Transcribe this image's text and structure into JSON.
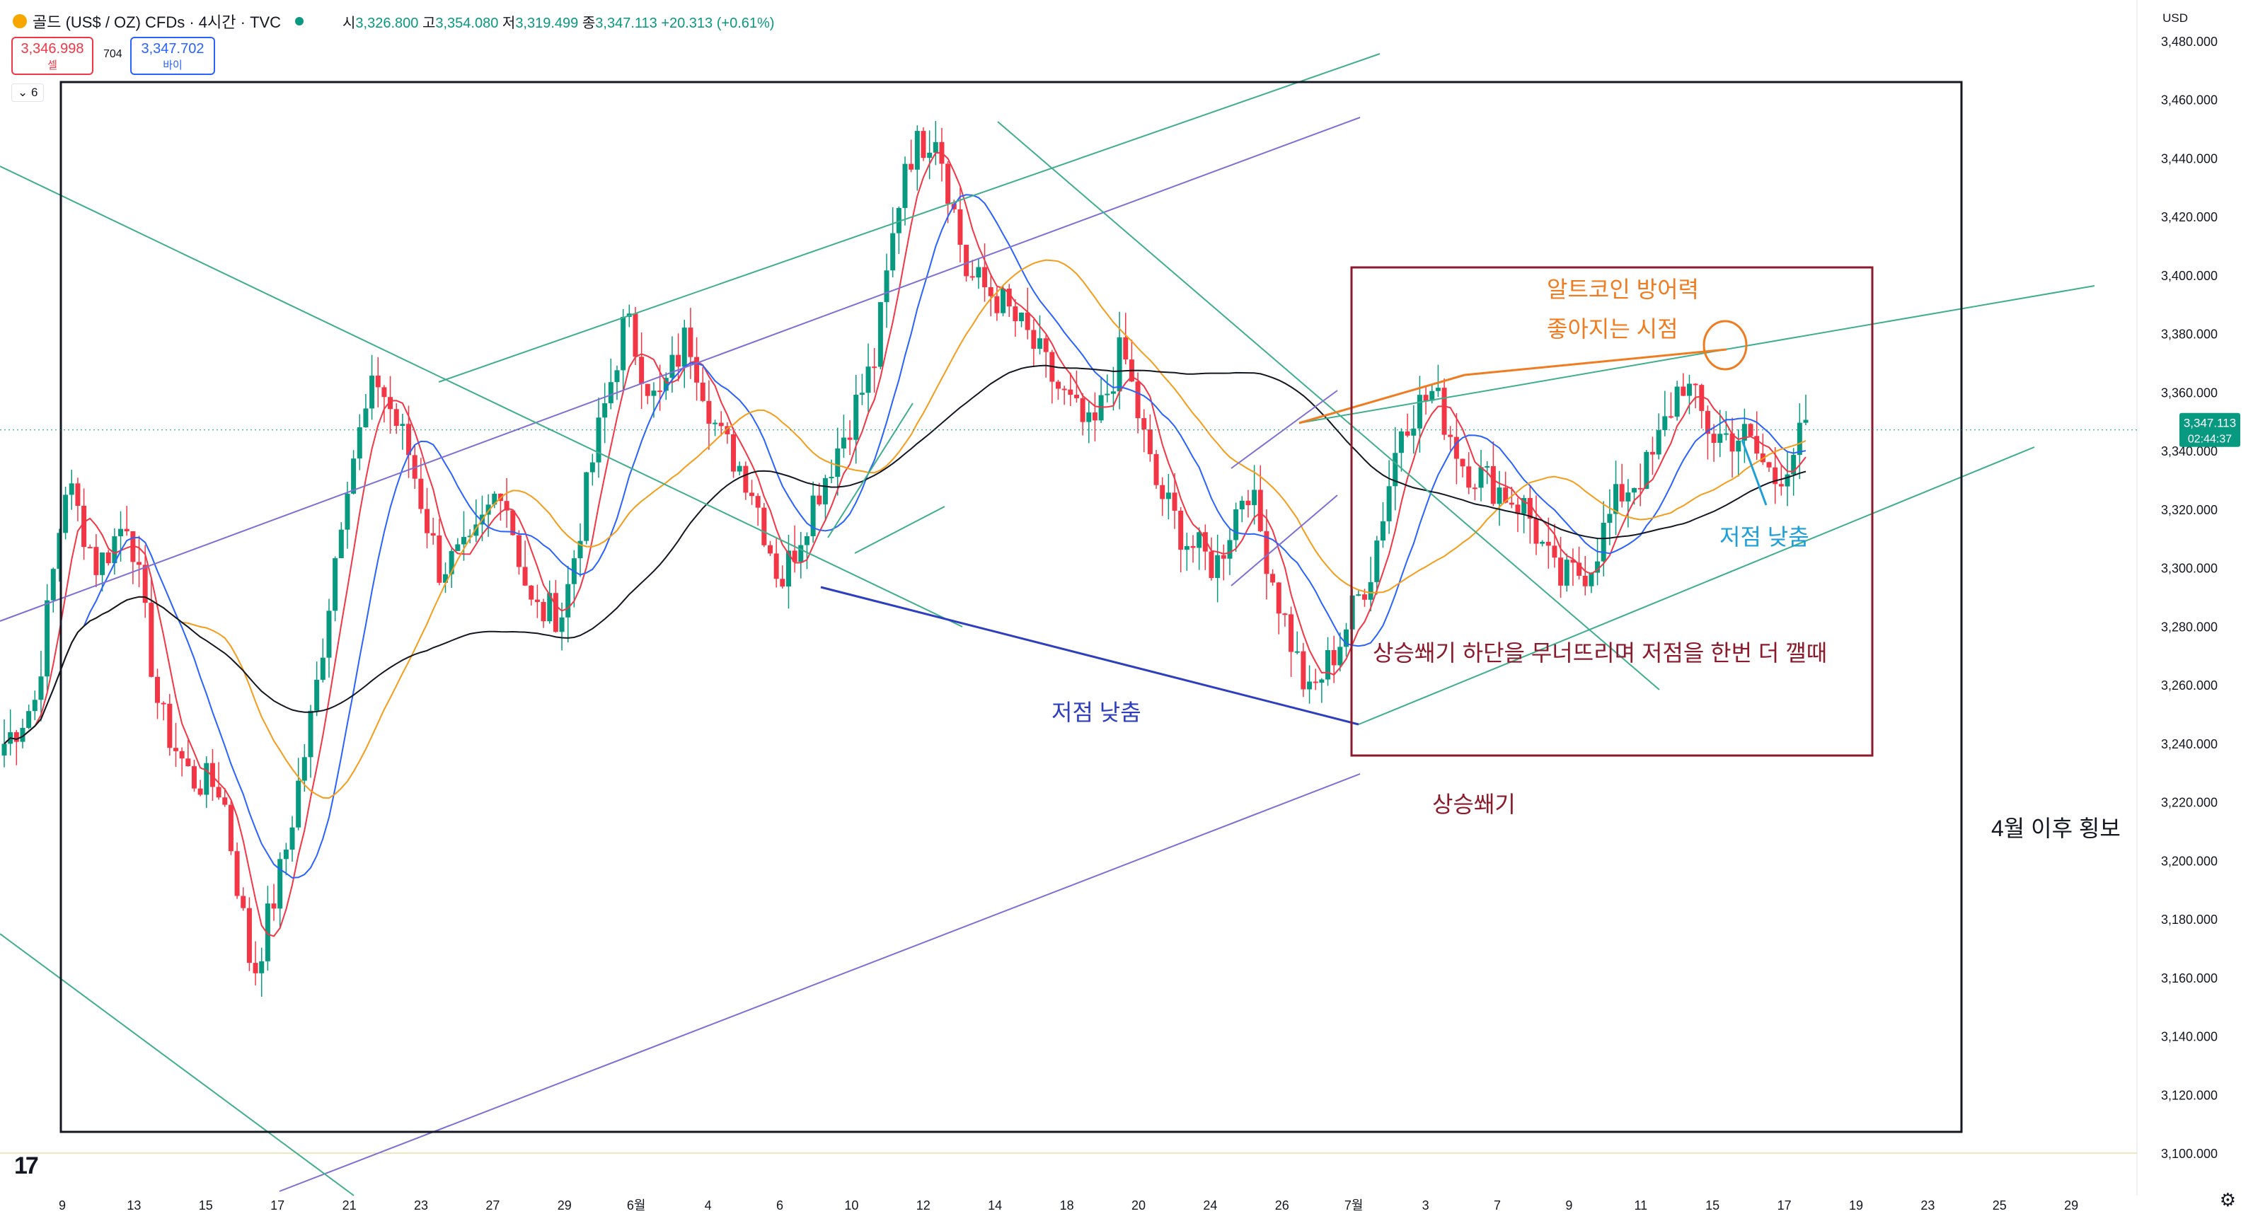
{
  "header": {
    "symbol_title": "골드 (US$ / OZ) CFDs · 4시간 · TVC",
    "ohlc": {
      "open_label": "시",
      "open": "3,326.800",
      "high_label": "고",
      "high": "3,354.080",
      "low_label": "저",
      "low": "3,319.499",
      "close_label": "종",
      "close": "3,347.113",
      "change": "+20.313 (+0.61%)"
    },
    "sell": {
      "price": "3,346.998",
      "label": "셀"
    },
    "buy": {
      "price": "3,347.702",
      "label": "바이"
    },
    "spread": "704",
    "interval_badge": "6",
    "currency": "USD"
  },
  "colors": {
    "up": "#089981",
    "down": "#f23645",
    "ma_red": "#f23645",
    "ma_blue": "#2962ff",
    "ma_orange": "#f59c1a",
    "ma_black": "#131722",
    "channel_green": "#3fae8c",
    "channel_purple": "#7e6fd6",
    "annot_maroon": "#8b1a2b",
    "annot_orange": "#f07c21",
    "annot_blue": "#2d3fbf",
    "annot_cyan": "#1e9fd8"
  },
  "chart_data": {
    "type": "candlestick",
    "title": "골드 (US$ / OZ) CFDs · 4시간 · TVC",
    "ylim": [
      3100,
      3480
    ],
    "y_ticks": [
      "3,480.000",
      "3,460.000",
      "3,440.000",
      "3,420.000",
      "3,400.000",
      "3,380.000",
      "3,360.000",
      "3,340.000",
      "3,320.000",
      "3,300.000",
      "3,280.000",
      "3,260.000",
      "3,240.000",
      "3,220.000",
      "3,200.000",
      "3,180.000",
      "3,160.000",
      "3,140.000",
      "3,120.000",
      "3,100.000"
    ],
    "x_ticks": [
      "9",
      "13",
      "15",
      "17",
      "21",
      "23",
      "27",
      "29",
      "6월",
      "4",
      "6",
      "10",
      "12",
      "14",
      "18",
      "20",
      "24",
      "26",
      "7월",
      "3",
      "7",
      "9",
      "11",
      "15",
      "17",
      "19",
      "23",
      "25",
      "29"
    ],
    "last_price_label": "3,347.113",
    "countdown": "02:44:37",
    "anchor_prices": [
      3240,
      3255,
      3330,
      3300,
      3318,
      3250,
      3228,
      3225,
      3160,
      3200,
      3255,
      3330,
      3365,
      3340,
      3300,
      3305,
      3330,
      3285,
      3285,
      3340,
      3385,
      3355,
      3380,
      3345,
      3330,
      3295,
      3322,
      3345,
      3370,
      3440,
      3450,
      3400,
      3392,
      3378,
      3360,
      3345,
      3375,
      3330,
      3310,
      3300,
      3330,
      3290,
      3255,
      3275,
      3300,
      3350,
      3360,
      3335,
      3328,
      3320,
      3295,
      3300,
      3325,
      3335,
      3365,
      3345,
      3345,
      3330,
      3347
    ]
  },
  "annotations": {
    "altcoin_1": "알트코인 방어력",
    "altcoin_2": "좋아지는 시점",
    "lower_low_right": "저점 낮춤",
    "wedge_break": "상승쐐기 하단을 무너뜨리며 저점을 한번 더 깰때",
    "lower_low_left": "저점 낮춤",
    "rising_wedge": "상승쐐기",
    "sideways": "4월 이후 횡보"
  }
}
